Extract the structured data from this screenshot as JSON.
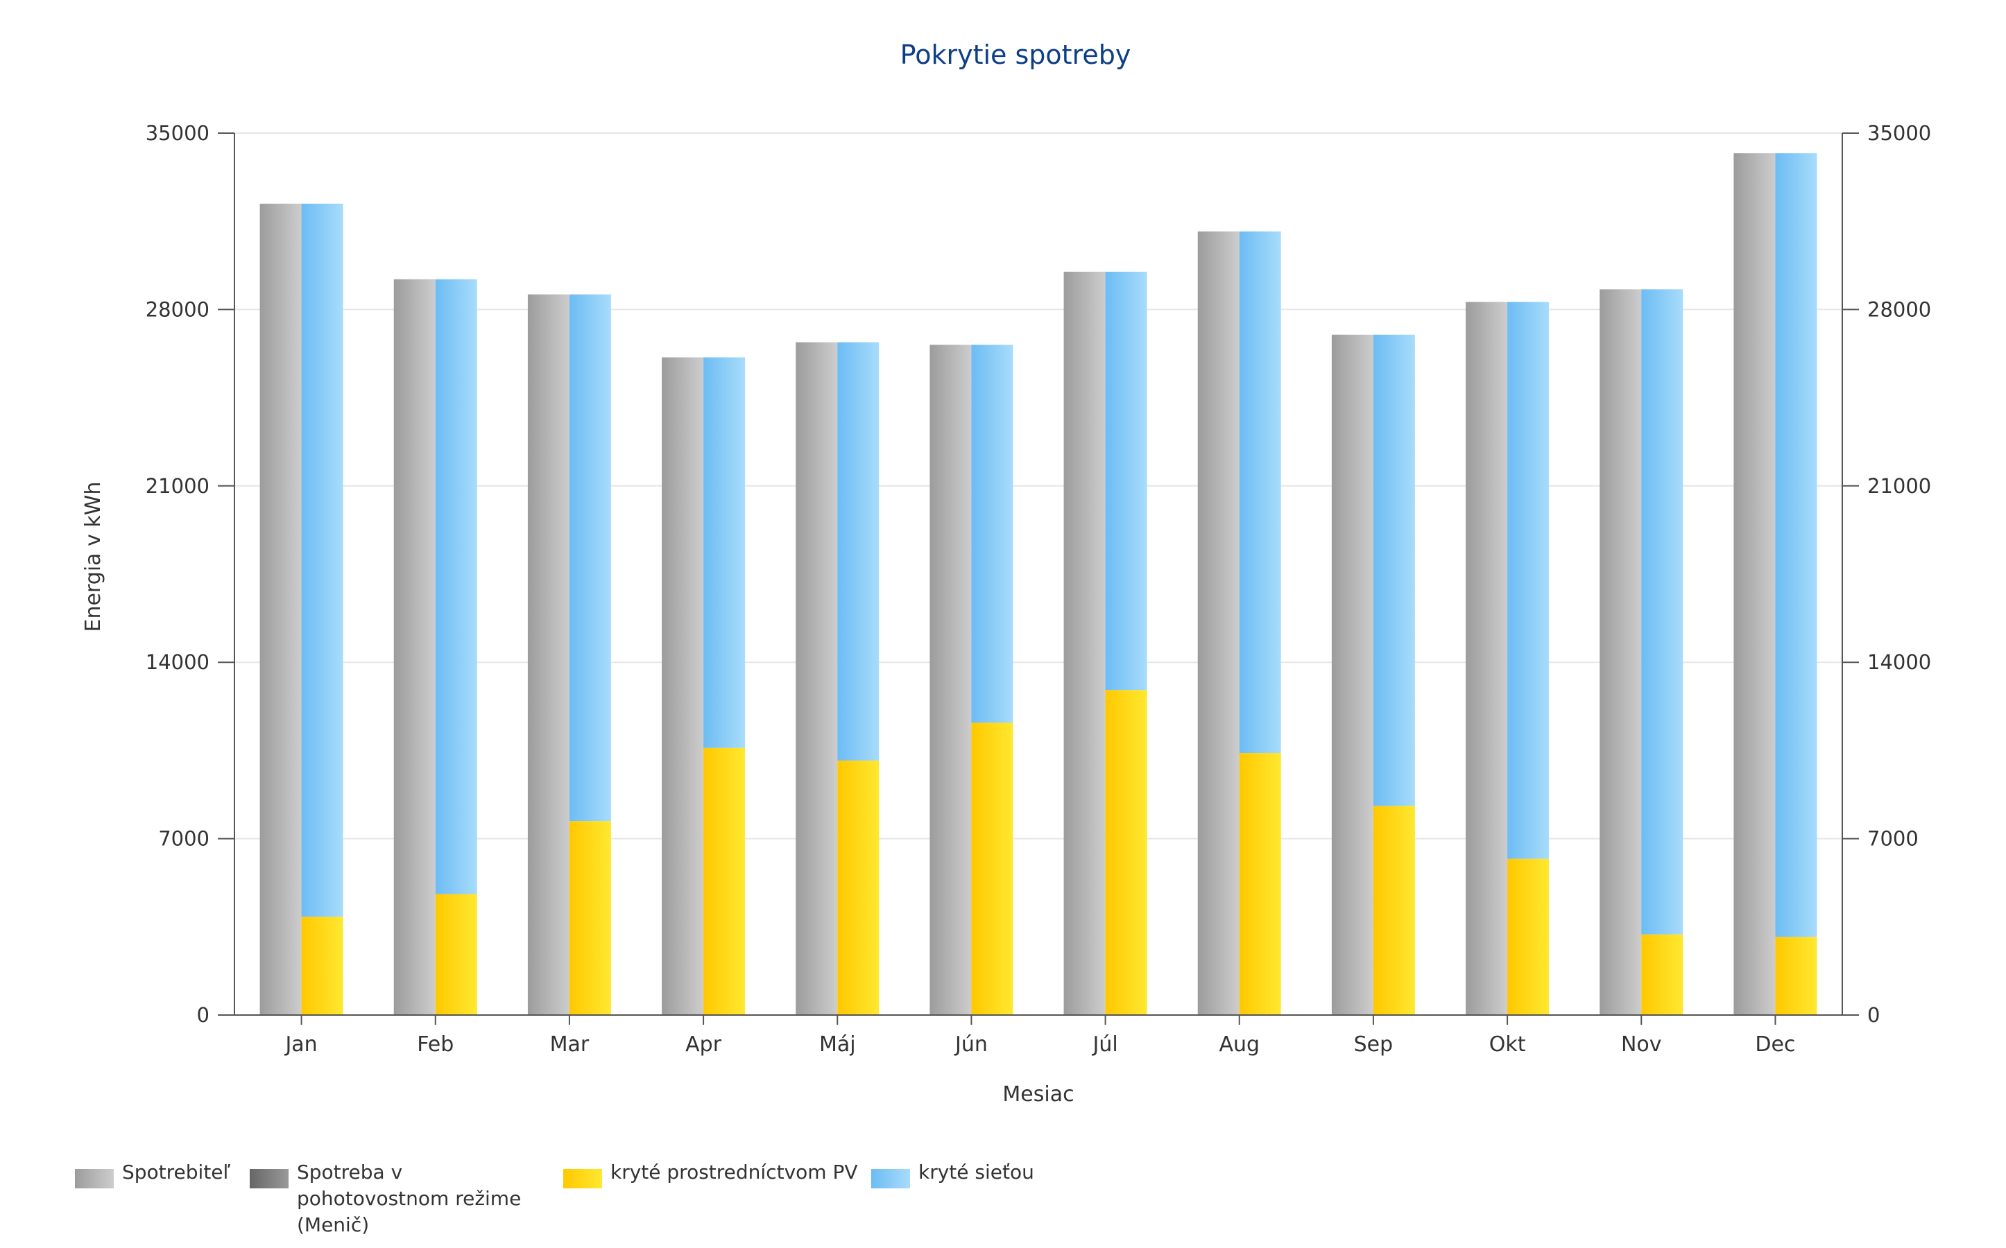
{
  "chart_data": {
    "type": "bar",
    "title": "Pokrytie spotreby",
    "xlabel": "Mesiac",
    "ylabel": "Energia v kWh",
    "ylim": [
      0,
      35000
    ],
    "yticks": [
      "0",
      "7000",
      "14000",
      "21000",
      "28000",
      "35000"
    ],
    "categories": [
      "Jan",
      "Feb",
      "Mar",
      "Apr",
      "Máj",
      "Jún",
      "Júl",
      "Aug",
      "Sep",
      "Okt",
      "Nov",
      "Dec"
    ],
    "grid": true,
    "legend_position": "bottom-left",
    "series": [
      {
        "name": "Spotrebiteľ",
        "stack": "consumer",
        "color": "#b4b4b4",
        "values": [
          32200,
          29200,
          28600,
          26100,
          26700,
          26600,
          29500,
          31100,
          27000,
          28300,
          28800,
          34200
        ]
      },
      {
        "name": "Spotreba v pohotovostnom režime (Menič)",
        "stack": "consumer",
        "color": "#7a7a7a",
        "values": [
          0,
          0,
          0,
          0,
          0,
          0,
          0,
          0,
          0,
          0,
          0,
          0
        ]
      },
      {
        "name": "kryté prostredníctvom PV",
        "stack": "coverage",
        "color": "#ffd400",
        "values": [
          3900,
          4800,
          7700,
          10600,
          10100,
          11600,
          12900,
          10400,
          8300,
          6200,
          3200,
          3100
        ]
      },
      {
        "name": "kryté sieťou",
        "stack": "coverage",
        "color": "#88ccf6",
        "values": [
          28300,
          24400,
          20900,
          15500,
          16600,
          15000,
          16600,
          20700,
          18700,
          22100,
          25600,
          31100
        ]
      }
    ]
  },
  "legend": {
    "items": [
      {
        "label": "Spotrebiteľ"
      },
      {
        "label": "Spotreba v pohotovostnom režime (Menič)"
      },
      {
        "label": "kryté prostredníctvom PV"
      },
      {
        "label": "kryté sieťou"
      }
    ]
  }
}
